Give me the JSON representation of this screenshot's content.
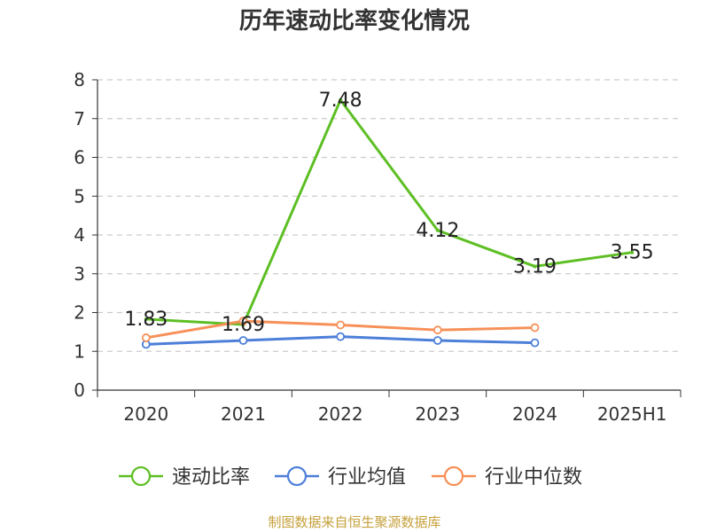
{
  "chart_data": {
    "type": "line",
    "title": "历年速动比率变化情况",
    "xlabel": "",
    "ylabel": "",
    "categories": [
      "2020",
      "2021",
      "2022",
      "2023",
      "2024",
      "2025H1"
    ],
    "ylim": [
      0,
      8
    ],
    "yticks": [
      "0",
      "1",
      "2",
      "3",
      "4",
      "5",
      "6",
      "7",
      "8"
    ],
    "grid": "horizontal-dashed",
    "legend_position": "bottom",
    "series": [
      {
        "name": "速动比率",
        "color": "#5dbf23",
        "values": [
          1.83,
          1.69,
          7.48,
          4.12,
          3.19,
          3.55
        ],
        "labels": [
          "1.83",
          "1.69",
          "7.48",
          "4.12",
          "3.19",
          "3.55"
        ]
      },
      {
        "name": "行业均值",
        "color": "#4d7fd9",
        "values": [
          1.18,
          1.28,
          1.38,
          1.28,
          1.22,
          null
        ]
      },
      {
        "name": "行业中位数",
        "color": "#f79058",
        "values": [
          1.35,
          1.78,
          1.68,
          1.55,
          1.61,
          null
        ]
      }
    ]
  },
  "source": {
    "text": "制图数据来自恒生聚源数据库",
    "color": "#c5a03a"
  }
}
